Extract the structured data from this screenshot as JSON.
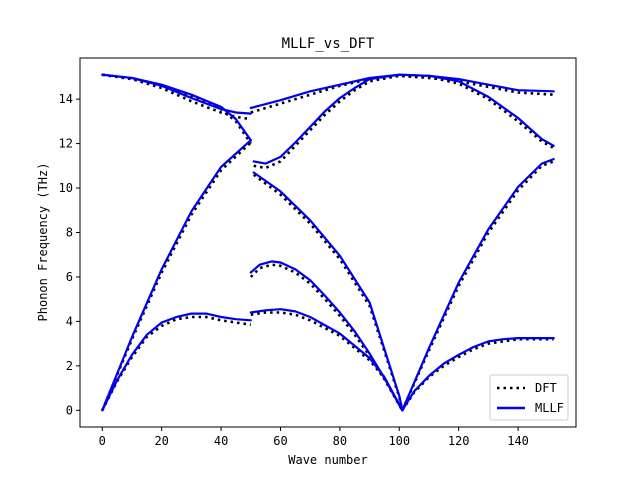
{
  "chart_data": {
    "type": "line",
    "title": "MLLF_vs_DFT",
    "xlabel": "Wave number",
    "ylabel": "Phonon Frequency (THz)",
    "xlim": [
      -7.5,
      159.5
    ],
    "ylim": [
      -0.75,
      15.85
    ],
    "xticks": [
      0,
      20,
      40,
      60,
      80,
      100,
      120,
      140
    ],
    "yticks": [
      0,
      2,
      4,
      6,
      8,
      10,
      12,
      14
    ],
    "grid": false,
    "legend_position": "lower-right",
    "series": [
      {
        "name": "DFT",
        "style": "dotted",
        "color": "#000000",
        "branches": [
          [
            [
              0,
              15.1
            ],
            [
              10,
              14.9
            ],
            [
              20,
              14.5
            ],
            [
              30,
              13.9
            ],
            [
              40,
              13.4
            ],
            [
              45,
              13.2
            ],
            [
              50,
              13.1
            ]
          ],
          [
            [
              50,
              13.4
            ],
            [
              60,
              13.8
            ],
            [
              70,
              14.2
            ],
            [
              80,
              14.6
            ],
            [
              90,
              14.9
            ],
            [
              100,
              15.05
            ],
            [
              110,
              14.95
            ],
            [
              120,
              14.8
            ],
            [
              130,
              14.55
            ],
            [
              140,
              14.3
            ],
            [
              152,
              14.2
            ]
          ],
          [
            [
              0,
              15.1
            ],
            [
              10,
              14.9
            ],
            [
              20,
              14.6
            ],
            [
              30,
              14.15
            ],
            [
              40,
              13.55
            ],
            [
              45,
              13.0
            ],
            [
              50,
              12.0
            ]
          ],
          [
            [
              51,
              11.0
            ],
            [
              55,
              10.9
            ],
            [
              60,
              11.2
            ],
            [
              65,
              11.9
            ],
            [
              70,
              12.6
            ],
            [
              75,
              13.3
            ],
            [
              80,
              13.9
            ],
            [
              85,
              14.4
            ],
            [
              90,
              14.8
            ],
            [
              100,
              15.05
            ],
            [
              110,
              15.0
            ],
            [
              120,
              14.7
            ],
            [
              130,
              14.0
            ],
            [
              140,
              13.0
            ],
            [
              148,
              12.1
            ],
            [
              152,
              11.8
            ]
          ],
          [
            [
              0,
              0
            ],
            [
              10,
              3.2
            ],
            [
              20,
              6.2
            ],
            [
              30,
              8.8
            ],
            [
              40,
              10.8
            ],
            [
              50,
              12.05
            ]
          ],
          [
            [
              51,
              10.6
            ],
            [
              60,
              9.7
            ],
            [
              70,
              8.4
            ],
            [
              80,
              6.8
            ],
            [
              90,
              4.7
            ],
            [
              100,
              0.6
            ],
            [
              101,
              0
            ]
          ],
          [
            [
              101,
              0
            ],
            [
              110,
              2.7
            ],
            [
              120,
              5.6
            ],
            [
              130,
              8.0
            ],
            [
              140,
              9.9
            ],
            [
              148,
              11.0
            ],
            [
              152,
              11.2
            ]
          ],
          [
            [
              0,
              0
            ],
            [
              5,
              1.3
            ],
            [
              10,
              2.4
            ],
            [
              15,
              3.3
            ],
            [
              20,
              3.8
            ],
            [
              25,
              4.1
            ],
            [
              30,
              4.2
            ],
            [
              35,
              4.2
            ],
            [
              40,
              4.05
            ],
            [
              45,
              3.95
            ],
            [
              50,
              3.85
            ]
          ],
          [
            [
              50,
              4.3
            ],
            [
              55,
              4.4
            ],
            [
              60,
              4.4
            ],
            [
              65,
              4.3
            ],
            [
              70,
              4.05
            ],
            [
              80,
              3.35
            ],
            [
              90,
              2.25
            ],
            [
              95,
              1.45
            ],
            [
              101,
              0
            ]
          ],
          [
            [
              50,
              6.0
            ],
            [
              53,
              6.4
            ],
            [
              57,
              6.55
            ],
            [
              60,
              6.5
            ],
            [
              65,
              6.2
            ],
            [
              70,
              5.7
            ],
            [
              75,
              5.0
            ],
            [
              80,
              4.25
            ],
            [
              85,
              3.4
            ],
            [
              90,
              2.45
            ],
            [
              95,
              1.4
            ],
            [
              101,
              0
            ]
          ],
          [
            [
              101,
              0
            ],
            [
              105,
              0.8
            ],
            [
              110,
              1.5
            ],
            [
              115,
              2.0
            ],
            [
              120,
              2.4
            ],
            [
              125,
              2.75
            ],
            [
              130,
              3.0
            ],
            [
              135,
              3.1
            ],
            [
              140,
              3.2
            ],
            [
              146,
              3.2
            ],
            [
              152,
              3.2
            ]
          ]
        ]
      },
      {
        "name": "MLLF",
        "style": "solid",
        "color": "#0000ee",
        "branches": [
          [
            [
              0,
              15.1
            ],
            [
              10,
              14.95
            ],
            [
              20,
              14.6
            ],
            [
              30,
              14.05
            ],
            [
              40,
              13.55
            ],
            [
              45,
              13.4
            ],
            [
              50,
              13.35
            ]
          ],
          [
            [
              50,
              13.6
            ],
            [
              60,
              13.95
            ],
            [
              70,
              14.35
            ],
            [
              80,
              14.65
            ],
            [
              90,
              14.95
            ],
            [
              100,
              15.1
            ],
            [
              110,
              15.05
            ],
            [
              120,
              14.9
            ],
            [
              130,
              14.65
            ],
            [
              140,
              14.4
            ],
            [
              152,
              14.35
            ]
          ],
          [
            [
              0,
              15.1
            ],
            [
              10,
              14.95
            ],
            [
              20,
              14.65
            ],
            [
              30,
              14.2
            ],
            [
              40,
              13.65
            ],
            [
              45,
              13.1
            ],
            [
              50,
              12.15
            ]
          ],
          [
            [
              51,
              11.2
            ],
            [
              55,
              11.1
            ],
            [
              60,
              11.4
            ],
            [
              65,
              12.05
            ],
            [
              70,
              12.75
            ],
            [
              75,
              13.45
            ],
            [
              80,
              14.05
            ],
            [
              85,
              14.5
            ],
            [
              90,
              14.9
            ],
            [
              100,
              15.1
            ],
            [
              110,
              15.05
            ],
            [
              120,
              14.8
            ],
            [
              130,
              14.1
            ],
            [
              140,
              13.15
            ],
            [
              148,
              12.2
            ],
            [
              152,
              11.9
            ]
          ],
          [
            [
              0,
              0
            ],
            [
              10,
              3.3
            ],
            [
              20,
              6.35
            ],
            [
              30,
              8.95
            ],
            [
              40,
              10.95
            ],
            [
              50,
              12.15
            ]
          ],
          [
            [
              51,
              10.7
            ],
            [
              60,
              9.85
            ],
            [
              70,
              8.55
            ],
            [
              80,
              6.95
            ],
            [
              90,
              4.85
            ],
            [
              100,
              0.65
            ],
            [
              101,
              0
            ]
          ],
          [
            [
              101,
              0
            ],
            [
              110,
              2.8
            ],
            [
              120,
              5.75
            ],
            [
              130,
              8.15
            ],
            [
              140,
              10.05
            ],
            [
              148,
              11.1
            ],
            [
              152,
              11.3
            ]
          ],
          [
            [
              0,
              0
            ],
            [
              5,
              1.35
            ],
            [
              10,
              2.5
            ],
            [
              15,
              3.4
            ],
            [
              20,
              3.95
            ],
            [
              25,
              4.2
            ],
            [
              30,
              4.35
            ],
            [
              35,
              4.35
            ],
            [
              40,
              4.2
            ],
            [
              45,
              4.1
            ],
            [
              50,
              4.05
            ]
          ],
          [
            [
              50,
              4.4
            ],
            [
              55,
              4.5
            ],
            [
              60,
              4.55
            ],
            [
              65,
              4.45
            ],
            [
              70,
              4.2
            ],
            [
              80,
              3.45
            ],
            [
              90,
              2.35
            ],
            [
              95,
              1.5
            ],
            [
              101,
              0
            ]
          ],
          [
            [
              50,
              6.2
            ],
            [
              53,
              6.55
            ],
            [
              57,
              6.7
            ],
            [
              60,
              6.65
            ],
            [
              65,
              6.35
            ],
            [
              70,
              5.85
            ],
            [
              75,
              5.15
            ],
            [
              80,
              4.4
            ],
            [
              85,
              3.55
            ],
            [
              90,
              2.55
            ],
            [
              95,
              1.45
            ],
            [
              101,
              0
            ]
          ],
          [
            [
              101,
              0
            ],
            [
              105,
              0.85
            ],
            [
              110,
              1.55
            ],
            [
              115,
              2.1
            ],
            [
              120,
              2.5
            ],
            [
              125,
              2.85
            ],
            [
              130,
              3.1
            ],
            [
              135,
              3.2
            ],
            [
              140,
              3.25
            ],
            [
              146,
              3.25
            ],
            [
              152,
              3.25
            ]
          ]
        ]
      }
    ]
  }
}
